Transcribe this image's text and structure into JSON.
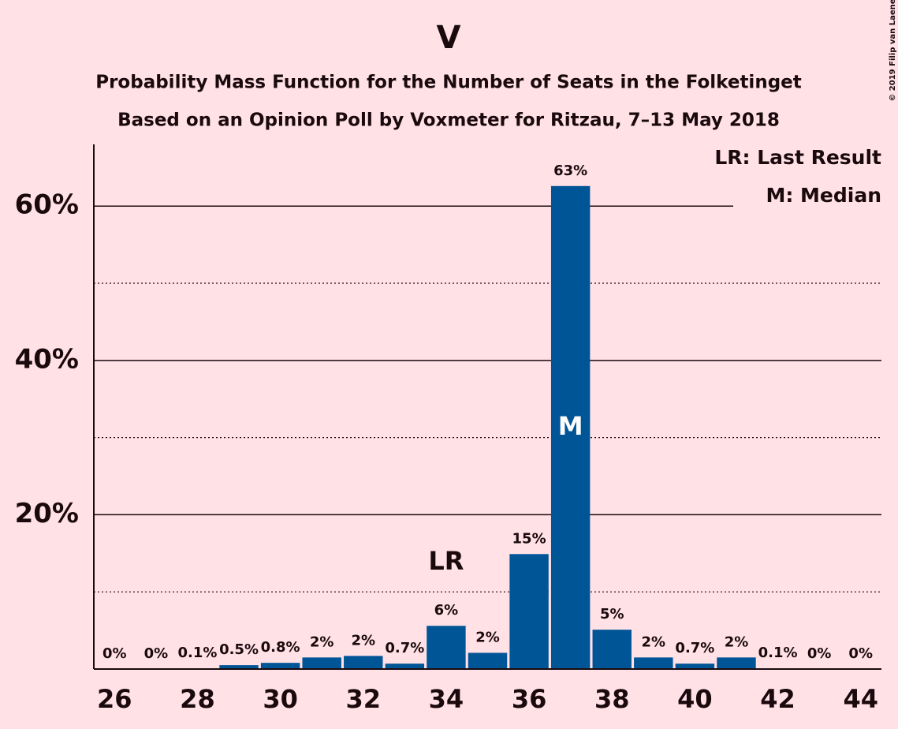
{
  "chart_data": {
    "type": "bar",
    "title": "V",
    "subtitle": "Probability Mass Function for the Number of Seats in the Folketinget",
    "subtitle2": "Based on an Opinion Poll by Voxmeter for Ritzau, 7–13 May 2018",
    "copyright": "© 2019 Filip van Laenen",
    "x": [
      26,
      27,
      28,
      29,
      30,
      31,
      32,
      33,
      34,
      35,
      36,
      37,
      38,
      39,
      40,
      41,
      42,
      43,
      44
    ],
    "values": [
      0,
      0,
      0.1,
      0.5,
      0.8,
      1.5,
      1.7,
      0.7,
      5.6,
      2.1,
      14.9,
      62.6,
      5.1,
      1.5,
      0.7,
      1.5,
      0.1,
      0,
      0
    ],
    "value_labels": [
      "0%",
      "0%",
      "0.1%",
      "0.5%",
      "0.8%",
      "2%",
      "2%",
      "0.7%",
      "6%",
      "2%",
      "15%",
      "63%",
      "5%",
      "2%",
      "0.7%",
      "2%",
      "0.1%",
      "0%",
      "0%"
    ],
    "color": "#005597",
    "xlim": [
      25.5,
      44.5
    ],
    "xticks": [
      26,
      28,
      30,
      32,
      34,
      36,
      38,
      40,
      42,
      44
    ],
    "ylim": [
      0,
      68
    ],
    "yticks": [
      {
        "value": 20,
        "label": "20%"
      },
      {
        "value": 40,
        "label": "40%"
      },
      {
        "value": 60,
        "label": "60%"
      }
    ],
    "minor_yticks": [
      10,
      30,
      50
    ],
    "grid": true,
    "annotations": [
      {
        "text": "LR",
        "x": 34
      },
      {
        "text": "M",
        "x": 37
      }
    ],
    "legend_texts": [
      "LR: Last Result",
      "M: Median"
    ]
  }
}
